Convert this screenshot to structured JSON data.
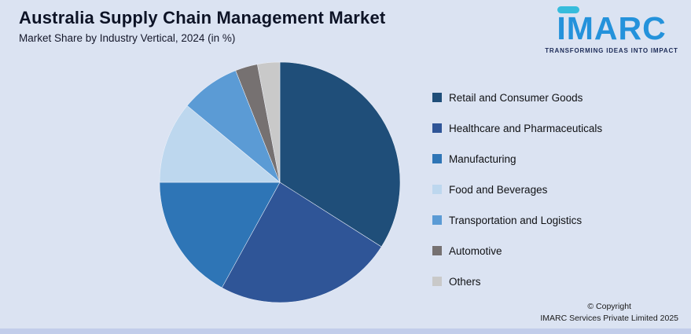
{
  "header": {
    "title": "Australia Supply Chain Management Market",
    "subtitle": "Market Share by Industry Vertical, 2024 (in %)"
  },
  "logo": {
    "text": "IMARC",
    "tagline": "TRANSFORMING IDEAS INTO IMPACT",
    "brand_blue": "#2492db",
    "accent_cyan": "#36bcdc"
  },
  "chart_data": {
    "type": "pie",
    "title": "Australia Supply Chain Management Market",
    "subtitle": "Market Share by Industry Vertical, 2024 (in %)",
    "labels": [
      "Retail and Consumer Goods",
      "Healthcare and Pharmaceuticals",
      "Manufacturing",
      "Food and Beverages",
      "Transportation and Logistics",
      "Automotive",
      "Others"
    ],
    "values": [
      34,
      24,
      17,
      11,
      8,
      3,
      3
    ],
    "colors": [
      "#1f4e79",
      "#2f5597",
      "#2e75b6",
      "#bdd7ee",
      "#5b9bd5",
      "#767171",
      "#c9c9c9"
    ],
    "legend_position": "right",
    "start_angle_deg": -90,
    "direction": "clockwise"
  },
  "footer": {
    "line1": "© Copyright",
    "line2": "IMARC Services Private Limited 2025"
  }
}
